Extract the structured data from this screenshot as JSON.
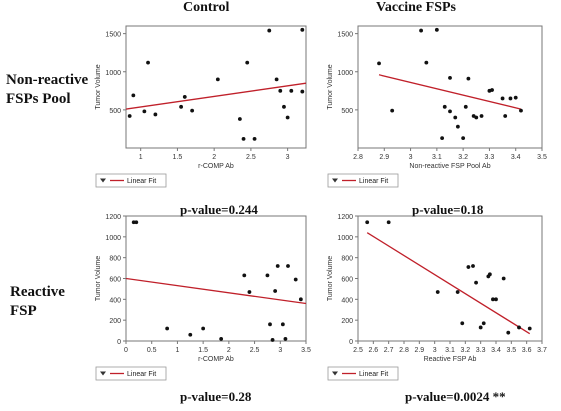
{
  "columns": [
    "Control",
    "Vaccine FSPs"
  ],
  "rows": [
    {
      "line1": "Non-reactive",
      "line2": "FSPs Pool"
    },
    {
      "line1": "Reactive",
      "line2": "FSP"
    }
  ],
  "colors": {
    "fit_line": "#c0202a",
    "points": "#111111",
    "axis": "#777777",
    "grid": "#dddddd"
  },
  "chart_data": [
    {
      "type": "scatter",
      "xlabel": "r-COMP Ab",
      "ylabel": "Tumor Volume",
      "xlim": [
        0.8,
        3.25
      ],
      "ylim": [
        0,
        1600
      ],
      "xticks": [
        1,
        1.5,
        2,
        2.5,
        3
      ],
      "yticks": [
        500,
        1000,
        1500
      ],
      "x": [
        0.85,
        0.9,
        1.05,
        1.1,
        1.2,
        1.55,
        1.6,
        1.7,
        2.05,
        2.35,
        2.4,
        2.45,
        2.55,
        2.75,
        2.85,
        2.9,
        2.95,
        3.0,
        3.05,
        3.2,
        3.2
      ],
      "y": [
        420,
        690,
        480,
        1120,
        440,
        540,
        670,
        490,
        900,
        380,
        120,
        1120,
        120,
        1540,
        900,
        750,
        540,
        400,
        750,
        1550,
        740
      ],
      "fit": {
        "x": [
          0.8,
          3.25
        ],
        "y": [
          510,
          850
        ],
        "name": "Linear Fit"
      },
      "legend": [
        "Linear Fit"
      ],
      "pvalue": "p-value=0.244"
    },
    {
      "type": "scatter",
      "xlabel": "Non-reactive FSP Pool Ab",
      "ylabel": "Tumor Volume",
      "xlim": [
        2.8,
        3.5
      ],
      "ylim": [
        0,
        1600
      ],
      "xticks": [
        2.8,
        2.9,
        3.0,
        3.1,
        3.2,
        3.3,
        3.4,
        3.5
      ],
      "yticks": [
        500,
        1000,
        1500
      ],
      "x": [
        2.88,
        2.93,
        3.04,
        3.06,
        3.1,
        3.12,
        3.13,
        3.15,
        3.15,
        3.17,
        3.18,
        3.2,
        3.21,
        3.22,
        3.24,
        3.25,
        3.27,
        3.3,
        3.31,
        3.35,
        3.36,
        3.38,
        3.4,
        3.42
      ],
      "y": [
        1110,
        490,
        1540,
        1120,
        1550,
        130,
        540,
        480,
        920,
        400,
        280,
        130,
        540,
        910,
        420,
        400,
        420,
        750,
        760,
        650,
        420,
        650,
        660,
        490
      ],
      "fit": {
        "x": [
          2.88,
          3.42
        ],
        "y": [
          960,
          510
        ],
        "name": "Linear Fit"
      },
      "legend": [
        "Linear Fit"
      ],
      "pvalue": "p-value=0.18"
    },
    {
      "type": "scatter",
      "xlabel": "r-COMP Ab",
      "ylabel": "Tumor Volume",
      "xlim": [
        0,
        3.5
      ],
      "ylim": [
        0,
        1200
      ],
      "xticks": [
        0,
        0.5,
        1,
        1.5,
        2,
        2.5,
        3,
        3.5
      ],
      "yticks": [
        0,
        200,
        400,
        600,
        800,
        1000,
        1200
      ],
      "x": [
        0.15,
        0.2,
        0.8,
        1.25,
        1.5,
        1.85,
        2.3,
        2.4,
        2.75,
        2.8,
        2.85,
        2.9,
        2.95,
        3.05,
        3.1,
        3.15,
        3.3,
        3.4
      ],
      "y": [
        1140,
        1140,
        120,
        60,
        120,
        20,
        630,
        470,
        630,
        160,
        10,
        480,
        720,
        160,
        20,
        720,
        590,
        400
      ],
      "fit": {
        "x": [
          0,
          3.5
        ],
        "y": [
          600,
          360
        ],
        "name": "Linear Fit"
      },
      "legend": [
        "Linear Fit"
      ],
      "pvalue": "p-value=0.28"
    },
    {
      "type": "scatter",
      "xlabel": "Reactive FSP Ab",
      "ylabel": "Tumor Volume",
      "xlim": [
        2.5,
        3.7
      ],
      "ylim": [
        0,
        1200
      ],
      "xticks": [
        2.5,
        2.6,
        2.7,
        2.8,
        2.9,
        3.0,
        3.1,
        3.2,
        3.3,
        3.4,
        3.5,
        3.6,
        3.7
      ],
      "yticks": [
        0,
        200,
        400,
        600,
        800,
        1000,
        1200
      ],
      "x": [
        2.56,
        2.7,
        3.02,
        3.15,
        3.18,
        3.22,
        3.25,
        3.27,
        3.3,
        3.32,
        3.35,
        3.36,
        3.38,
        3.4,
        3.45,
        3.48,
        3.55,
        3.62
      ],
      "y": [
        1140,
        1140,
        470,
        470,
        170,
        710,
        720,
        560,
        130,
        170,
        620,
        640,
        400,
        400,
        600,
        80,
        130,
        120
      ],
      "fit": {
        "x": [
          2.56,
          3.62
        ],
        "y": [
          1040,
          70
        ],
        "name": "Linear Fit"
      },
      "legend": [
        "Linear Fit"
      ],
      "pvalue": "p-value=0.0024 **"
    }
  ]
}
